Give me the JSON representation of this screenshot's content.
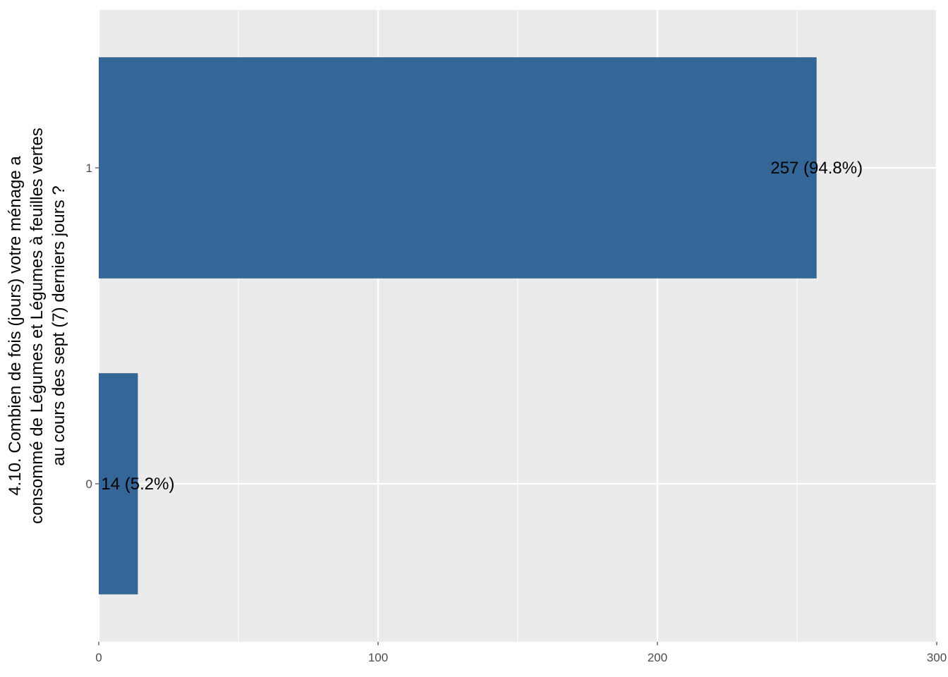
{
  "chart_data": {
    "type": "bar",
    "orientation": "horizontal",
    "categories": [
      "0",
      "1"
    ],
    "values": [
      14,
      257
    ],
    "data_labels": [
      "14 (5.2%)",
      "257 (94.8%)"
    ],
    "xlim": [
      0,
      300
    ],
    "x_ticks": [
      "0",
      "100",
      "200",
      "300"
    ],
    "x_tick_values": [
      0,
      100,
      200,
      300
    ],
    "x_minor_tick_values": [
      50,
      150,
      250
    ],
    "ylabel_lines": [
      "4.10. Combien de fois (jours) votre ménage a",
      "consommé de Légumes et Légumes à feuilles vertes",
      "au cours des sept (7) derniers jours ?"
    ],
    "xlabel": "",
    "title": "",
    "grid": true,
    "legend": "none",
    "colors": {
      "bar": "#346797",
      "panel_background": "#ebebeb",
      "grid": "#ffffff",
      "tick_text": "#4d4d4d"
    }
  }
}
